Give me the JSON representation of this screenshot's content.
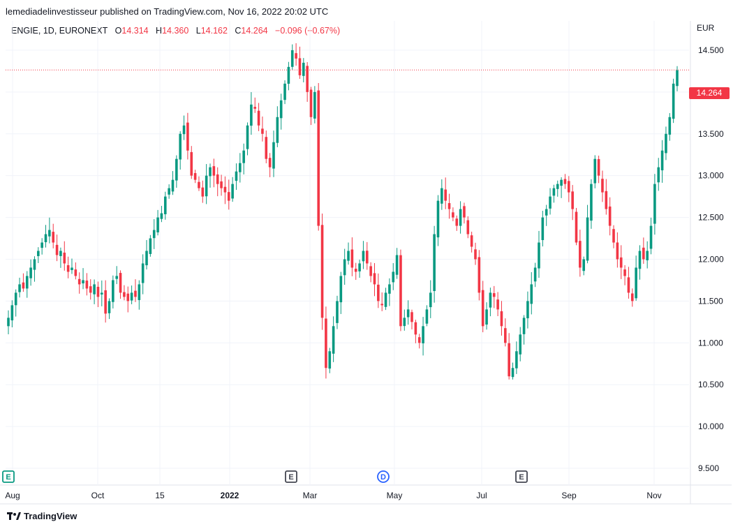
{
  "header": {
    "publisher": "lemediadelinvestisseur published on TradingView.com, Nov 16, 2022 20:02 UTC"
  },
  "legend": {
    "symbol": "ENGIE, 1D, EURONEXT",
    "o_label": "O",
    "o_value": "14.314",
    "h_label": "H",
    "h_value": "14.360",
    "l_label": "L",
    "l_value": "14.162",
    "c_label": "C",
    "c_value": "14.264",
    "change": "−0.096 (−0.67%)"
  },
  "axis": {
    "currency": "EUR"
  },
  "brand": {
    "name": "TradingView"
  },
  "colors": {
    "up": "#089981",
    "down": "#f23645",
    "grid": "#f0f3fa",
    "text": "#131722"
  },
  "chart_data": {
    "type": "candlestick",
    "ylim": [
      9.3,
      14.85
    ],
    "yticks": [
      "9.500",
      "10.000",
      "10.500",
      "11.000",
      "11.500",
      "12.000",
      "12.500",
      "13.000",
      "13.500",
      "14.000",
      "14.500"
    ],
    "xticks": [
      "Aug",
      "Oct",
      "15",
      "2022",
      "Mar",
      "May",
      "Jul",
      "Sep",
      "Nov"
    ],
    "last_price": "14.264",
    "last_price_value": 14.264,
    "events": [
      {
        "label": "E",
        "date": "Aug"
      },
      {
        "label": "E",
        "date": "Feb"
      },
      {
        "label": "D",
        "date": "Apr"
      },
      {
        "label": "E",
        "date": "Jul"
      }
    ],
    "close_series": [
      11.3,
      11.45,
      11.6,
      11.7,
      11.65,
      11.8,
      11.9,
      12.0,
      12.1,
      12.2,
      12.3,
      12.35,
      12.2,
      12.05,
      12.1,
      11.95,
      11.85,
      11.9,
      11.8,
      11.7,
      11.75,
      11.65,
      11.6,
      11.7,
      11.55,
      11.6,
      11.35,
      11.5,
      11.75,
      11.8,
      11.6,
      11.55,
      11.5,
      11.6,
      11.55,
      11.7,
      11.95,
      12.1,
      12.25,
      12.35,
      12.5,
      12.55,
      12.75,
      12.85,
      12.95,
      13.2,
      13.5,
      13.6,
      13.3,
      13.0,
      12.95,
      12.85,
      12.75,
      13.0,
      13.1,
      13.0,
      12.9,
      12.85,
      12.8,
      12.7,
      12.9,
      13.05,
      13.15,
      13.3,
      13.6,
      13.85,
      13.8,
      13.6,
      13.5,
      13.2,
      13.1,
      13.4,
      13.7,
      13.9,
      14.1,
      14.3,
      14.5,
      14.4,
      14.2,
      14.35,
      14.0,
      13.7,
      14.0,
      12.4,
      11.3,
      10.7,
      10.9,
      11.2,
      11.5,
      11.8,
      12.0,
      12.1,
      11.9,
      11.85,
      11.95,
      12.1,
      11.95,
      11.8,
      11.7,
      11.5,
      11.45,
      11.6,
      11.7,
      11.85,
      12.05,
      11.2,
      11.3,
      11.4,
      11.25,
      11.1,
      11.0,
      11.2,
      11.4,
      11.6,
      12.3,
      12.7,
      12.85,
      12.7,
      12.6,
      12.5,
      12.4,
      12.6,
      12.5,
      12.3,
      12.15,
      12.0,
      11.6,
      11.2,
      11.4,
      11.6,
      11.55,
      11.4,
      11.2,
      11.0,
      10.6,
      10.7,
      10.9,
      11.1,
      11.3,
      11.5,
      11.7,
      11.9,
      12.2,
      12.5,
      12.6,
      12.75,
      12.85,
      12.9,
      12.95,
      12.9,
      12.8,
      12.6,
      12.2,
      11.9,
      12.0,
      12.5,
      12.9,
      13.2,
      13.0,
      12.8,
      12.6,
      12.4,
      12.2,
      12.0,
      11.9,
      11.8,
      11.6,
      11.5,
      11.9,
      12.1,
      12.0,
      12.1,
      12.4,
      12.9,
      13.1,
      13.3,
      13.5,
      13.7,
      14.1,
      14.26
    ]
  }
}
